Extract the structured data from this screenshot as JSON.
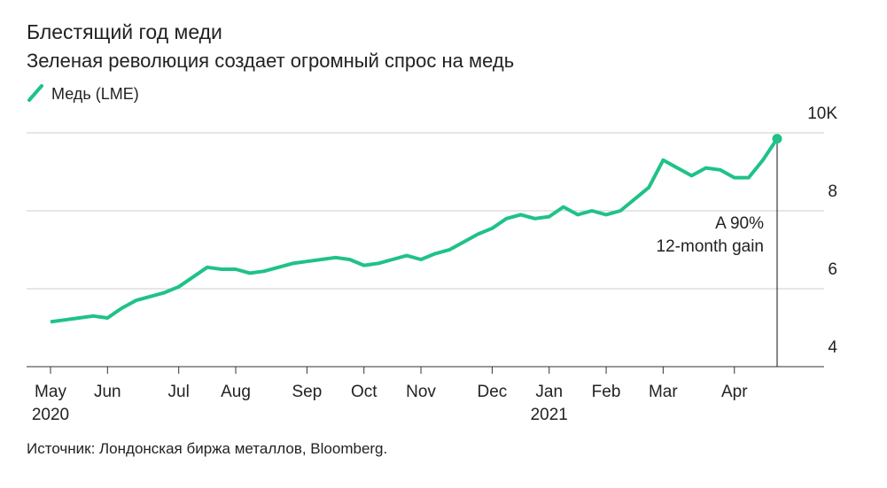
{
  "chart_data": {
    "type": "line",
    "title": "Блестящий год меди",
    "subtitle": "Зеленая революция создает огромный спрос на медь",
    "source": "Источник: Лондонская биржа металлов, Bloomberg.",
    "annotation": [
      "A 90%",
      "12-month gain"
    ],
    "categories": [
      "May 2020",
      null,
      null,
      null,
      "Jun",
      null,
      null,
      null,
      null,
      "Jul",
      null,
      null,
      null,
      "Aug",
      null,
      null,
      null,
      null,
      "Sep",
      null,
      null,
      null,
      "Oct",
      null,
      null,
      null,
      "Nov",
      null,
      null,
      null,
      null,
      "Dec",
      null,
      null,
      null,
      "Jan 2021",
      null,
      null,
      null,
      "Feb",
      null,
      null,
      null,
      "Mar",
      null,
      null,
      null,
      null,
      "Apr",
      null,
      null,
      null
    ],
    "series": [
      {
        "name": "Медь (LME)",
        "color": "#1fc287",
        "values": [
          5.15,
          5.2,
          5.25,
          5.3,
          5.25,
          5.5,
          5.7,
          5.8,
          5.9,
          6.05,
          6.3,
          6.55,
          6.5,
          6.5,
          6.4,
          6.45,
          6.55,
          6.65,
          6.7,
          6.75,
          6.8,
          6.75,
          6.6,
          6.65,
          6.75,
          6.85,
          6.75,
          6.9,
          7.0,
          7.2,
          7.4,
          7.55,
          7.8,
          7.9,
          7.8,
          7.85,
          8.1,
          7.9,
          8.0,
          7.9,
          8.0,
          8.3,
          8.6,
          9.3,
          9.1,
          8.9,
          9.1,
          9.05,
          8.85,
          8.85,
          9.3,
          9.85
        ]
      }
    ],
    "ylim": [
      4,
      10
    ],
    "yticks": [
      4,
      6,
      8,
      {
        "value": 10,
        "label": "10K"
      }
    ],
    "grid": true
  }
}
